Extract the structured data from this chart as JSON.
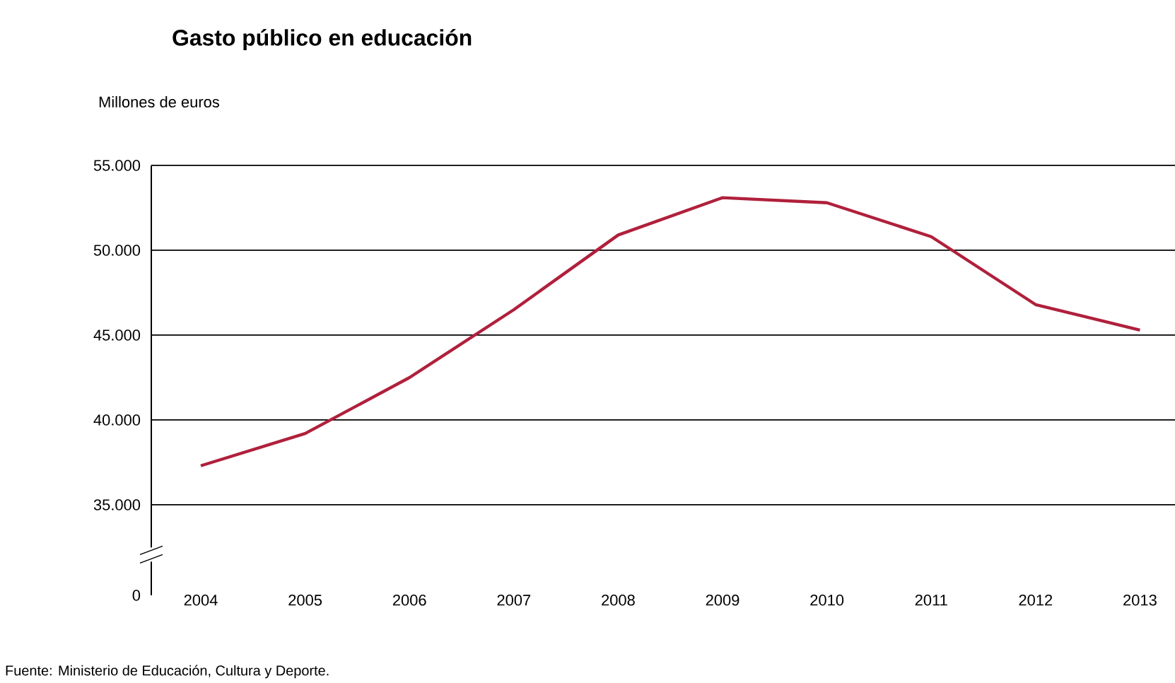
{
  "chart_data": {
    "type": "line",
    "title": "Gasto público en educación",
    "ylabel": "Millones de euros",
    "categories": [
      "2004",
      "2005",
      "2006",
      "2007",
      "2008",
      "2009",
      "2010",
      "2011",
      "2012",
      "2013"
    ],
    "series": [
      {
        "color": "#b0203c",
        "values": [
          37300,
          39200,
          42500,
          46500,
          50900,
          53100,
          52800,
          50800,
          46800,
          45300
        ]
      }
    ],
    "ylim": [
      35000,
      55000
    ],
    "yticks": [
      {
        "value": 35000,
        "label": "35.000"
      },
      {
        "value": 40000,
        "label": "40.000"
      },
      {
        "value": 45000,
        "label": "45.000"
      },
      {
        "value": 50000,
        "label": "50.000"
      },
      {
        "value": 55000,
        "label": "55.000"
      }
    ],
    "grid": "y",
    "marker": "none",
    "line_style": "solid",
    "annotations": [
      "Fuente: Ministerio de Educación, Cultura y Deporte.",
      "0"
    ]
  }
}
